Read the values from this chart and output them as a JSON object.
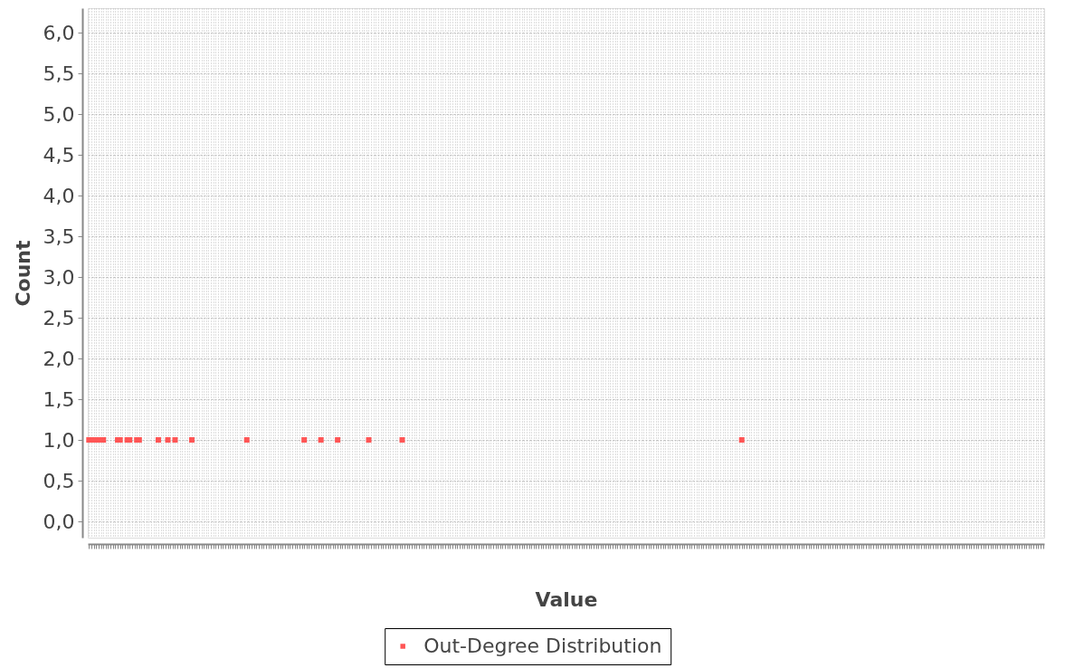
{
  "chart_data": {
    "type": "scatter",
    "xlabel": "Value",
    "ylabel": "Count",
    "categories": [
      null,
      null,
      null,
      null,
      null,
      null,
      null,
      null,
      null,
      null,
      null,
      null,
      null,
      null,
      null,
      null,
      null,
      null,
      null,
      null,
      null,
      null,
      null,
      null,
      null,
      null,
      null,
      null,
      null,
      null,
      null,
      null,
      null,
      null,
      null,
      null,
      null,
      null,
      null,
      null,
      null,
      null,
      null,
      null,
      null,
      null,
      null,
      null,
      null,
      null,
      null,
      null,
      null,
      null,
      null,
      null,
      null,
      null,
      null,
      null,
      null,
      null,
      null,
      null,
      null,
      null,
      null,
      null,
      null,
      null,
      null,
      null,
      null,
      null,
      null,
      null,
      null,
      null,
      null,
      null,
      null,
      null,
      null,
      null,
      null,
      null,
      null,
      null,
      null,
      null,
      null,
      null,
      null,
      null,
      null,
      null,
      null,
      null,
      null,
      null,
      null,
      null,
      null,
      null,
      null,
      null,
      null,
      null,
      null,
      null,
      null,
      null,
      null,
      null,
      null,
      null,
      null,
      null,
      null,
      null,
      null,
      null,
      null,
      null,
      null,
      null,
      null,
      null,
      null,
      null,
      null,
      null,
      null,
      null,
      null,
      null,
      null,
      null,
      null,
      null,
      null,
      null,
      null,
      null,
      null,
      null,
      null,
      null,
      null,
      null,
      null,
      null,
      null,
      null,
      null,
      null,
      null,
      null,
      null,
      null,
      null,
      null,
      null,
      null,
      null,
      null,
      null,
      null,
      null,
      null,
      null,
      null,
      null,
      null,
      null,
      null,
      null,
      null,
      null,
      null,
      null,
      null,
      null,
      null,
      null,
      null,
      null,
      null,
      null,
      null,
      null,
      null,
      null,
      null,
      null,
      null,
      null,
      null,
      null,
      null,
      null,
      null,
      null,
      null,
      null,
      null,
      null,
      null,
      null,
      null,
      null,
      null,
      null,
      null,
      null,
      null,
      null,
      null,
      null,
      null,
      null,
      null,
      null,
      null,
      null,
      null,
      null,
      null,
      null,
      null,
      null,
      null,
      null,
      null,
      null,
      null,
      null,
      null,
      null,
      null,
      null,
      null,
      null,
      null,
      null,
      null,
      null,
      null,
      null,
      null,
      null,
      null,
      null,
      null,
      null,
      null,
      null,
      null,
      null,
      null,
      null,
      null,
      null,
      null,
      null,
      null,
      null,
      null,
      null,
      null,
      null,
      null,
      null,
      null,
      null,
      null,
      null,
      null,
      null,
      null,
      null,
      null,
      null,
      null,
      null,
      null,
      null,
      null,
      null,
      null,
      null,
      null,
      null,
      null,
      null,
      null,
      null,
      null,
      null,
      null,
      null,
      null,
      null,
      null,
      null,
      null,
      null,
      null,
      null,
      null,
      null,
      null,
      null,
      null,
      null,
      null,
      null,
      null,
      null,
      null,
      null,
      null,
      null,
      null,
      null,
      null,
      null,
      null,
      null,
      null,
      null,
      null,
      null,
      null,
      null,
      null,
      null,
      null,
      null,
      null,
      null,
      null,
      null,
      null,
      null,
      null,
      null,
      null,
      null,
      null,
      null,
      null,
      null,
      null,
      null,
      null,
      null,
      null,
      null,
      null,
      null,
      null,
      null,
      null,
      null,
      null,
      null,
      null,
      null,
      null,
      null,
      null,
      null,
      null,
      null,
      null,
      null,
      null,
      null,
      null,
      null,
      null,
      null,
      null,
      null,
      null,
      null,
      null,
      null,
      null,
      null,
      null,
      null,
      null,
      null,
      null,
      null,
      null,
      null,
      null
    ],
    "series": [
      {
        "name": "Out-Degree Distribution",
        "color": "#ff5555",
        "values": [
          1,
          null,
          1,
          null,
          1,
          null,
          1,
          null,
          null,
          null,
          null,
          null,
          1,
          1,
          null,
          null,
          1,
          1,
          null,
          null,
          1,
          1,
          null,
          null,
          null,
          null,
          null,
          null,
          null,
          1,
          null,
          null,
          null,
          1,
          null,
          null,
          1,
          null,
          null,
          null,
          null,
          null,
          null,
          1,
          null,
          null,
          null,
          null,
          null,
          null,
          null,
          null,
          null,
          null,
          null,
          null,
          null,
          null,
          null,
          null,
          null,
          null,
          null,
          null,
          null,
          null,
          1,
          null,
          null,
          null,
          null,
          null,
          null,
          null,
          null,
          null,
          null,
          null,
          null,
          null,
          null,
          null,
          null,
          null,
          null,
          null,
          null,
          null,
          null,
          null,
          1,
          null,
          null,
          null,
          null,
          null,
          null,
          1,
          null,
          null,
          null,
          null,
          null,
          null,
          1,
          null,
          null,
          null,
          null,
          null,
          null,
          null,
          null,
          null,
          null,
          null,
          null,
          1,
          null,
          null,
          null,
          null,
          null,
          null,
          null,
          null,
          null,
          null,
          null,
          null,
          null,
          1,
          null,
          null,
          null,
          null,
          null,
          null,
          null,
          null,
          null,
          null,
          null,
          null,
          null,
          null,
          null,
          null,
          null,
          null,
          null,
          null,
          null,
          null,
          null,
          null,
          null,
          null,
          null,
          null,
          null,
          null,
          null,
          null,
          null,
          null,
          null,
          null,
          null,
          null,
          null,
          null,
          null,
          null,
          null,
          null,
          null,
          null,
          null,
          null,
          null,
          null,
          null,
          null,
          null,
          null,
          null,
          null,
          null,
          null,
          null,
          null,
          null,
          null,
          null,
          null,
          null,
          null,
          null,
          null,
          null,
          null,
          null,
          null,
          null,
          null,
          null,
          null,
          null,
          null,
          null,
          null,
          null,
          null,
          null,
          null,
          null,
          null,
          null,
          null,
          null,
          null,
          null,
          null,
          null,
          null,
          null,
          null,
          null,
          null,
          null,
          null,
          null,
          null,
          null,
          null,
          null,
          null,
          null,
          null,
          null,
          null,
          null,
          null,
          null,
          null,
          null,
          null,
          null,
          null,
          null,
          null,
          null,
          null,
          null,
          null,
          null,
          null,
          null,
          null,
          null,
          null,
          null,
          null,
          null,
          null,
          null,
          null,
          null,
          null,
          null,
          null,
          null,
          1,
          null,
          null,
          null,
          null,
          null,
          null,
          null,
          null,
          null,
          null,
          null,
          null,
          null,
          null,
          null,
          null,
          null,
          null,
          null,
          null,
          null,
          null,
          null,
          null,
          null,
          null,
          null,
          null,
          null,
          null,
          null,
          null,
          null,
          null,
          null,
          null,
          null,
          null,
          null,
          null,
          null,
          null,
          null,
          null,
          null,
          null,
          null,
          null,
          null,
          null,
          null,
          null,
          null,
          null,
          null,
          null,
          null,
          null,
          null,
          null,
          null,
          null,
          null,
          null,
          null,
          null,
          null,
          null,
          null,
          null,
          null,
          null,
          null,
          null,
          null,
          null,
          null,
          null,
          null,
          null,
          null,
          null,
          null,
          null,
          null,
          null,
          null,
          null,
          null,
          null,
          null,
          null,
          null,
          null,
          null,
          null,
          null,
          null,
          null,
          null,
          null,
          null,
          null,
          null,
          null,
          null,
          null,
          null,
          null,
          null,
          null,
          null,
          null,
          null,
          null,
          null,
          null,
          null,
          null,
          null,
          null,
          null,
          null,
          null,
          null,
          null
        ]
      }
    ],
    "ylim": [
      -0.2,
      6.3
    ],
    "yticks": [
      {
        "value": 0,
        "label": "0,0"
      },
      {
        "value": 0.5,
        "label": "0,5"
      },
      {
        "value": 1,
        "label": "1,0"
      },
      {
        "value": 1.5,
        "label": "1,5"
      },
      {
        "value": 2,
        "label": "2,0"
      },
      {
        "value": 2.5,
        "label": "2,5"
      },
      {
        "value": 3,
        "label": "3,0"
      },
      {
        "value": 3.5,
        "label": "3,5"
      },
      {
        "value": 4,
        "label": "4,0"
      },
      {
        "value": 4.5,
        "label": "4,5"
      },
      {
        "value": 5,
        "label": "5,0"
      },
      {
        "value": 5.5,
        "label": "5,5"
      },
      {
        "value": 6,
        "label": "6,0"
      }
    ],
    "grid": true,
    "legend": "bottom",
    "marker": "square"
  }
}
